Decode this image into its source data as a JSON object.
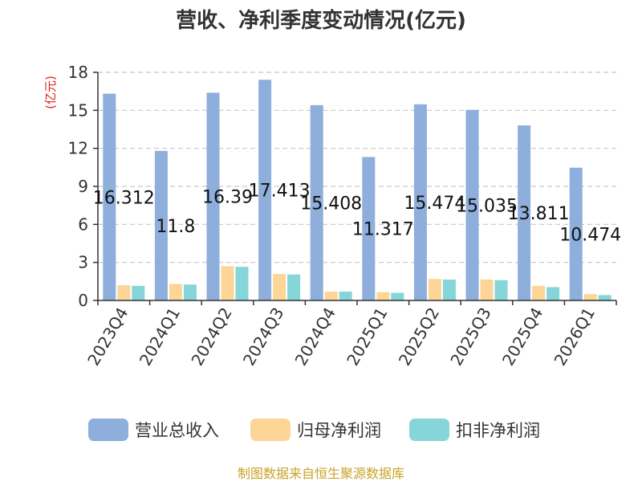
{
  "chart_data": {
    "type": "bar",
    "title": "营收、净利季度变动情况(亿元)",
    "ylabel": "(亿元)",
    "categories": [
      "2023Q4",
      "2024Q1",
      "2024Q2",
      "2024Q3",
      "2024Q4",
      "2025Q1",
      "2025Q2",
      "2025Q3",
      "2025Q4",
      "2026Q1"
    ],
    "ylim": [
      0,
      18
    ],
    "yticks": [
      0,
      3,
      6,
      9,
      12,
      15,
      18
    ],
    "grid": true,
    "legend_position": "bottom",
    "series": [
      {
        "name": "营业总收入",
        "color": "#8eaedc",
        "values": [
          16.312,
          11.8,
          16.39,
          17.413,
          15.408,
          11.317,
          15.474,
          15.035,
          13.811,
          10.474
        ],
        "labels": [
          "16.312",
          "11.8",
          "16.39",
          "17.413",
          "15.408",
          "11.317",
          "15.474",
          "15.035",
          "13.811",
          "10.474"
        ]
      },
      {
        "name": "归母净利润",
        "color": "#fdd596",
        "values": [
          1.2,
          1.3,
          2.7,
          2.1,
          0.7,
          0.65,
          1.7,
          1.65,
          1.15,
          0.5
        ]
      },
      {
        "name": "扣非净利润",
        "color": "#86d5d8",
        "values": [
          1.15,
          1.25,
          2.65,
          2.05,
          0.7,
          0.6,
          1.65,
          1.6,
          1.05,
          0.42
        ]
      }
    ],
    "source": "制图数据来自恒生聚源数据库"
  }
}
